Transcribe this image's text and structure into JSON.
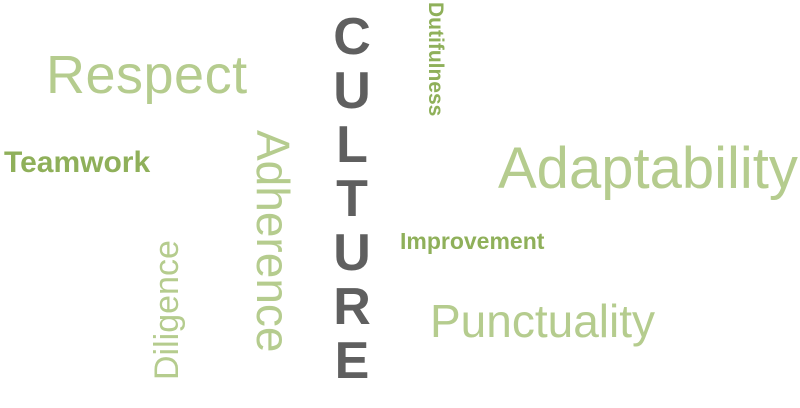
{
  "words": {
    "respect": "Respect",
    "teamwork": "Teamwork",
    "dutifulness": "Dutifulness",
    "adaptability": "Adaptability",
    "adherence": "Adherence",
    "improvement": "Improvement",
    "diligence": "Diligence",
    "punctuality": "Punctuality"
  },
  "center_word": {
    "text": "CULTURE",
    "letters": [
      "C",
      "U",
      "L",
      "T",
      "U",
      "R",
      "E"
    ]
  },
  "colors": {
    "light_green": "#b5cc8e",
    "bold_green": "#8fb05a",
    "center_gray": "#5f5f5f",
    "background": "#ffffff"
  }
}
